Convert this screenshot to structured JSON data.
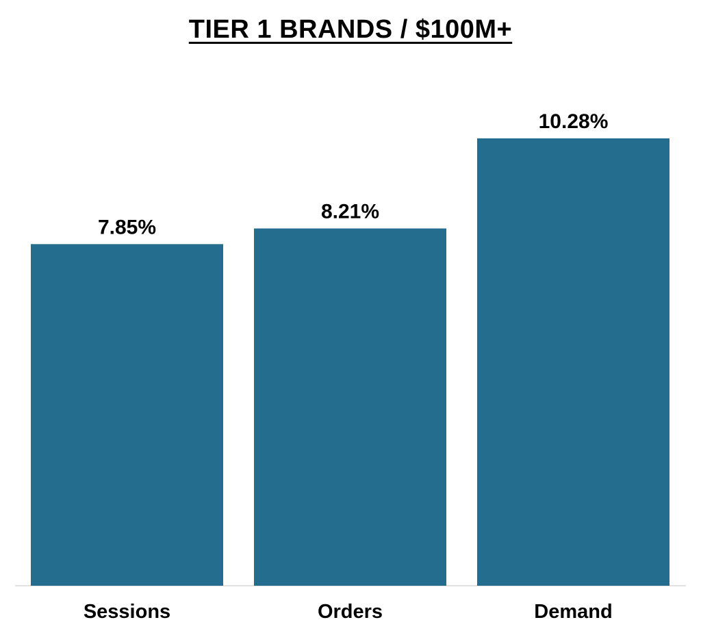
{
  "chart_data": {
    "type": "bar",
    "title": "TIER 1 BRANDS / $100M+",
    "categories": [
      "Sessions",
      "Orders",
      "Demand"
    ],
    "values": [
      7.85,
      8.21,
      10.28
    ],
    "value_labels": [
      "7.85%",
      "8.21%",
      "10.28%"
    ],
    "ylim": [
      0,
      10.28
    ],
    "grid": false,
    "legend": "none",
    "bar_color": "#256D8F",
    "baseline_color": "#D9D9D9"
  }
}
